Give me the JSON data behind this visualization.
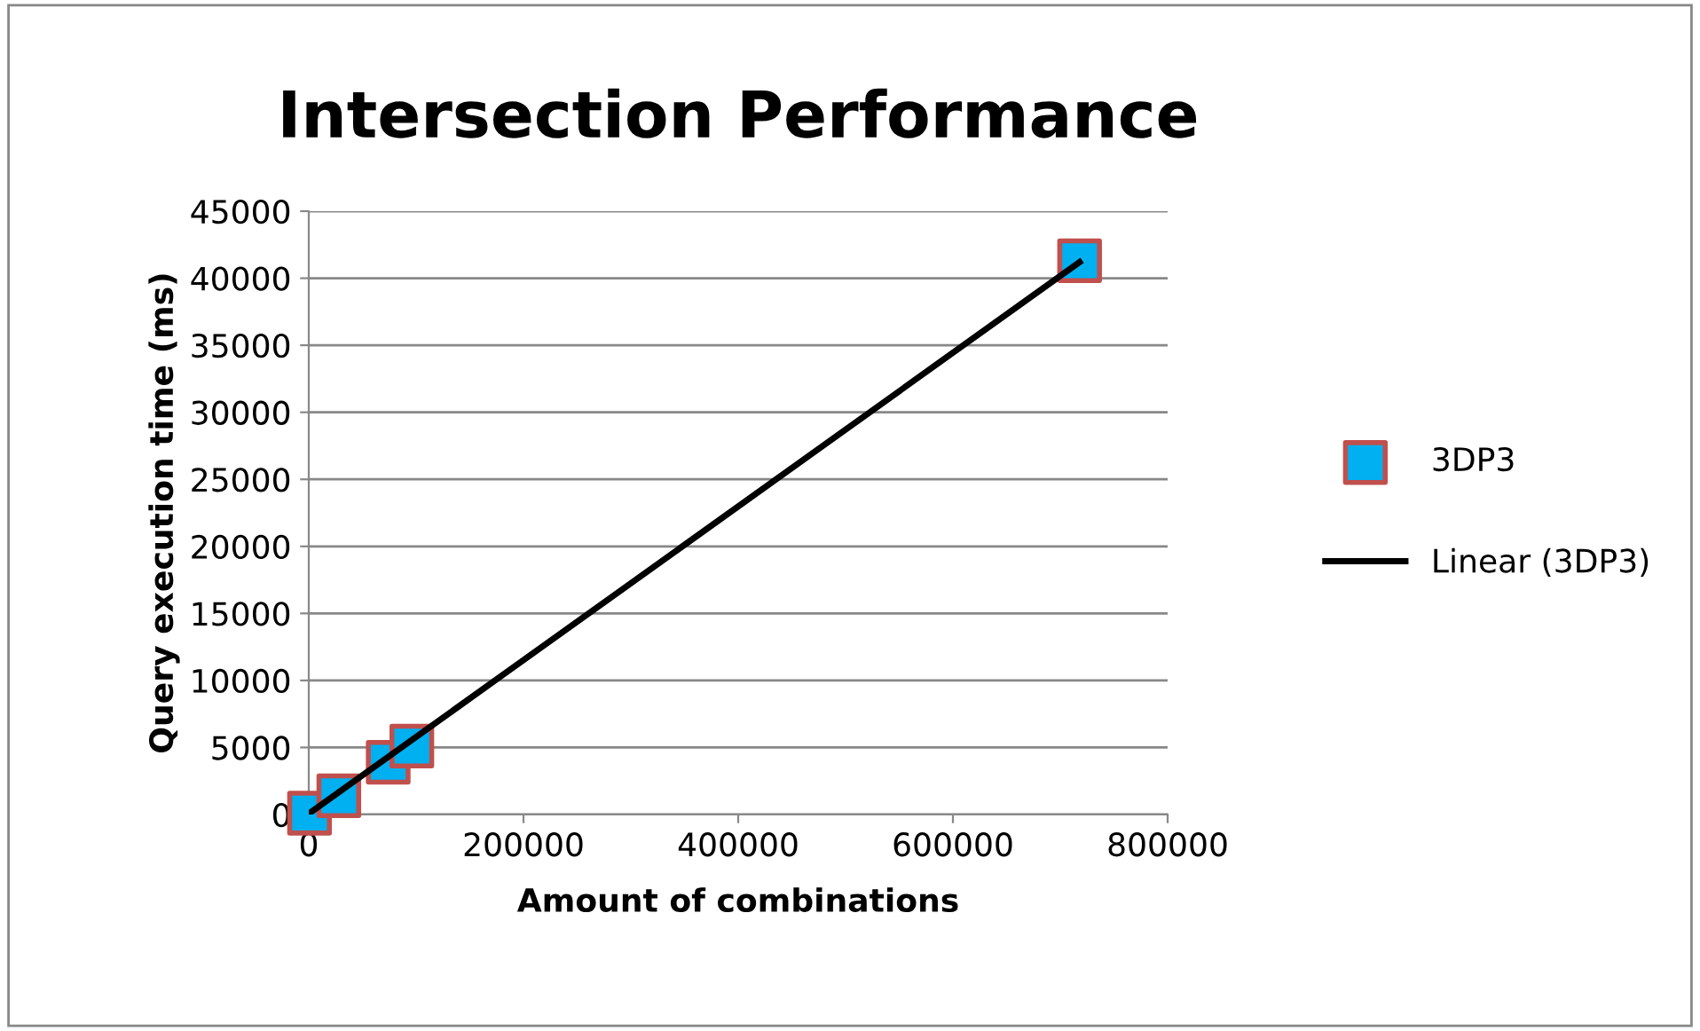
{
  "chart_data": {
    "type": "scatter",
    "title": "Intersection Performance",
    "xlabel": "Amount of combinations",
    "ylabel": "Query execution time (ms)",
    "series": [
      {
        "name": "3DP3",
        "color": "#00b0f0",
        "x": [
          720,
          28000,
          74000,
          96000,
          718000
        ],
        "values": [
          100,
          1400,
          3900,
          5100,
          41300
        ]
      },
      {
        "name": "Linear (3DP3)",
        "type": "line",
        "marker": "none",
        "color": "#000000",
        "x": [
          720,
          718000
        ],
        "values": [
          100,
          41200
        ]
      }
    ],
    "xlim": [
      0,
      800000
    ],
    "xticks": [
      0,
      200000,
      400000,
      600000,
      800000
    ],
    "ylim": [
      0,
      45000
    ],
    "yticks": [
      0,
      5000,
      10000,
      15000,
      20000,
      25000,
      30000,
      35000,
      40000,
      45000
    ],
    "grid": "y",
    "legend": "right",
    "marker": "square"
  }
}
